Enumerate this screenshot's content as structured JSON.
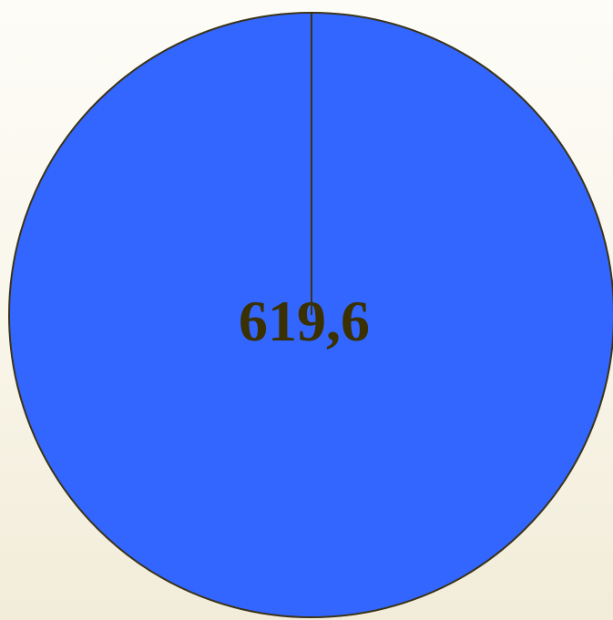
{
  "chart_data": {
    "type": "pie",
    "title": "",
    "slices": [
      {
        "label": "619,6",
        "value": 619.6,
        "color": "#3366ff"
      }
    ],
    "legend": "none"
  },
  "colors": {
    "slice_stroke": "#3a3318",
    "label_text": "#3a3000"
  }
}
